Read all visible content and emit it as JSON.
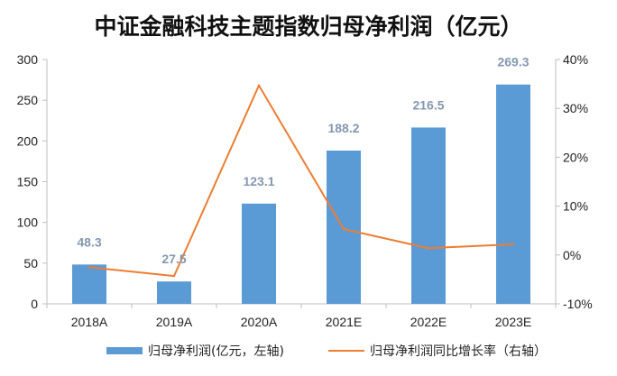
{
  "chart_data": {
    "type": "bar",
    "title": "中证金融科技主题指数归母净利润（亿元）",
    "categories": [
      "2018A",
      "2019A",
      "2020A",
      "2021E",
      "2022E",
      "2023E"
    ],
    "series": [
      {
        "name": "归母净利润(亿元，左轴)",
        "type": "bar",
        "axis": "left",
        "values": [
          48.3,
          27.5,
          123.1,
          188.2,
          216.5,
          269.3
        ],
        "data_labels": [
          "48.3",
          "27.5",
          "123.1",
          "188.2",
          "216.5",
          "269.3"
        ],
        "color": "#5b9bd5"
      },
      {
        "name": "归母净利润同比增长率（右轴）",
        "type": "line",
        "axis": "right",
        "values": [
          -2.5,
          -4.3,
          34.7,
          5.3,
          1.4,
          2.2
        ],
        "color": "#ed7d31"
      }
    ],
    "y_left": {
      "ylim": [
        0,
        300
      ],
      "ticks": [
        "0",
        "50",
        "100",
        "150",
        "200",
        "250",
        "300"
      ]
    },
    "y_right": {
      "ylim": [
        -10,
        40
      ],
      "ticks": [
        "-10%",
        "0%",
        "10%",
        "20%",
        "30%",
        "40%"
      ]
    },
    "grid": false,
    "legend": {
      "placement": "bottom"
    },
    "label_color": "#8497b0"
  }
}
